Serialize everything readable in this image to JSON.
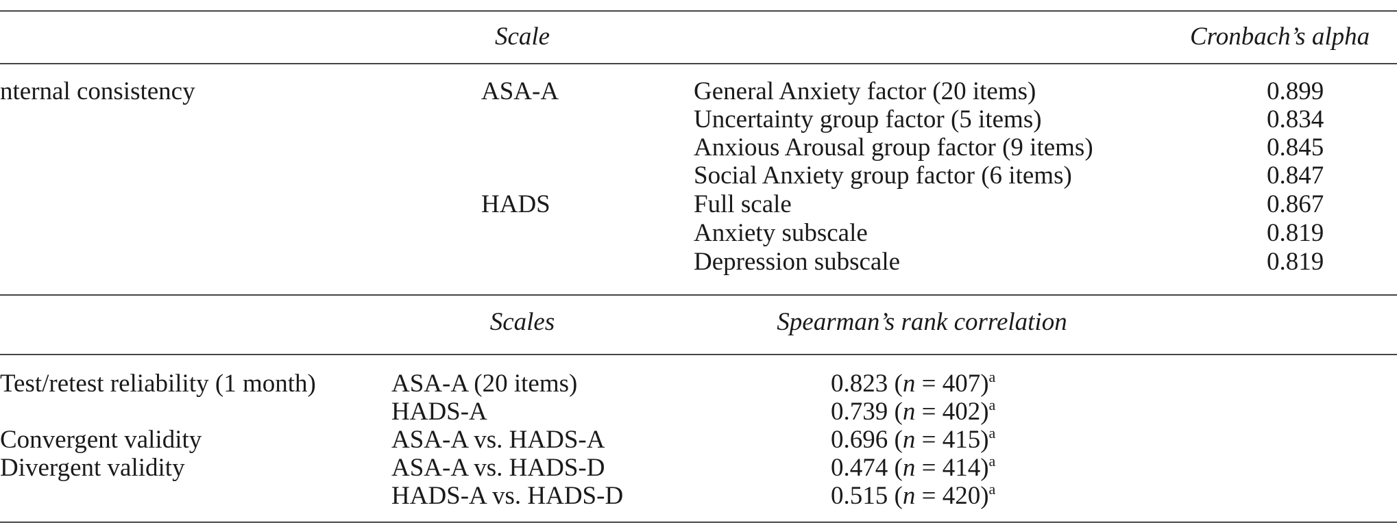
{
  "section1": {
    "header": {
      "scale": "Scale",
      "alpha": "Cronbach’s alpha"
    },
    "row_label": "nternal consistency",
    "groups": [
      {
        "scale": "ASA-A",
        "rows": [
          {
            "factor": "General Anxiety factor (20 items)",
            "alpha": "0.899"
          },
          {
            "factor": "Uncertainty group factor (5 items)",
            "alpha": "0.834"
          },
          {
            "factor": "Anxious Arousal group factor (9 items)",
            "alpha": "0.845"
          },
          {
            "factor": "Social Anxiety group factor (6 items)",
            "alpha": "0.847"
          }
        ]
      },
      {
        "scale": "HADS",
        "rows": [
          {
            "factor": "Full scale",
            "alpha": "0.867"
          },
          {
            "factor": "Anxiety subscale",
            "alpha": "0.819"
          },
          {
            "factor": "Depression subscale",
            "alpha": "0.819"
          }
        ]
      }
    ]
  },
  "section2": {
    "header": {
      "scales": "Scales",
      "spearman": "Spearman’s rank correlation"
    },
    "rows": [
      {
        "label": "Test/retest reliability (1 month)",
        "scales": "ASA-A (20 items)",
        "value": "0.823",
        "n": "407",
        "sup": "a"
      },
      {
        "label": "",
        "scales": "HADS-A",
        "value": "0.739",
        "n": "402",
        "sup": "a"
      },
      {
        "label": "Convergent validity",
        "scales": "ASA-A vs. HADS-A",
        "value": "0.696",
        "n": "415",
        "sup": "a"
      },
      {
        "label": "Divergent validity",
        "scales": "ASA-A vs. HADS-D",
        "value": "0.474",
        "n": "414",
        "sup": "a"
      },
      {
        "label": "",
        "scales": "HADS-A vs. HADS-D",
        "value": "0.515",
        "n": "420",
        "sup": "a"
      }
    ]
  }
}
